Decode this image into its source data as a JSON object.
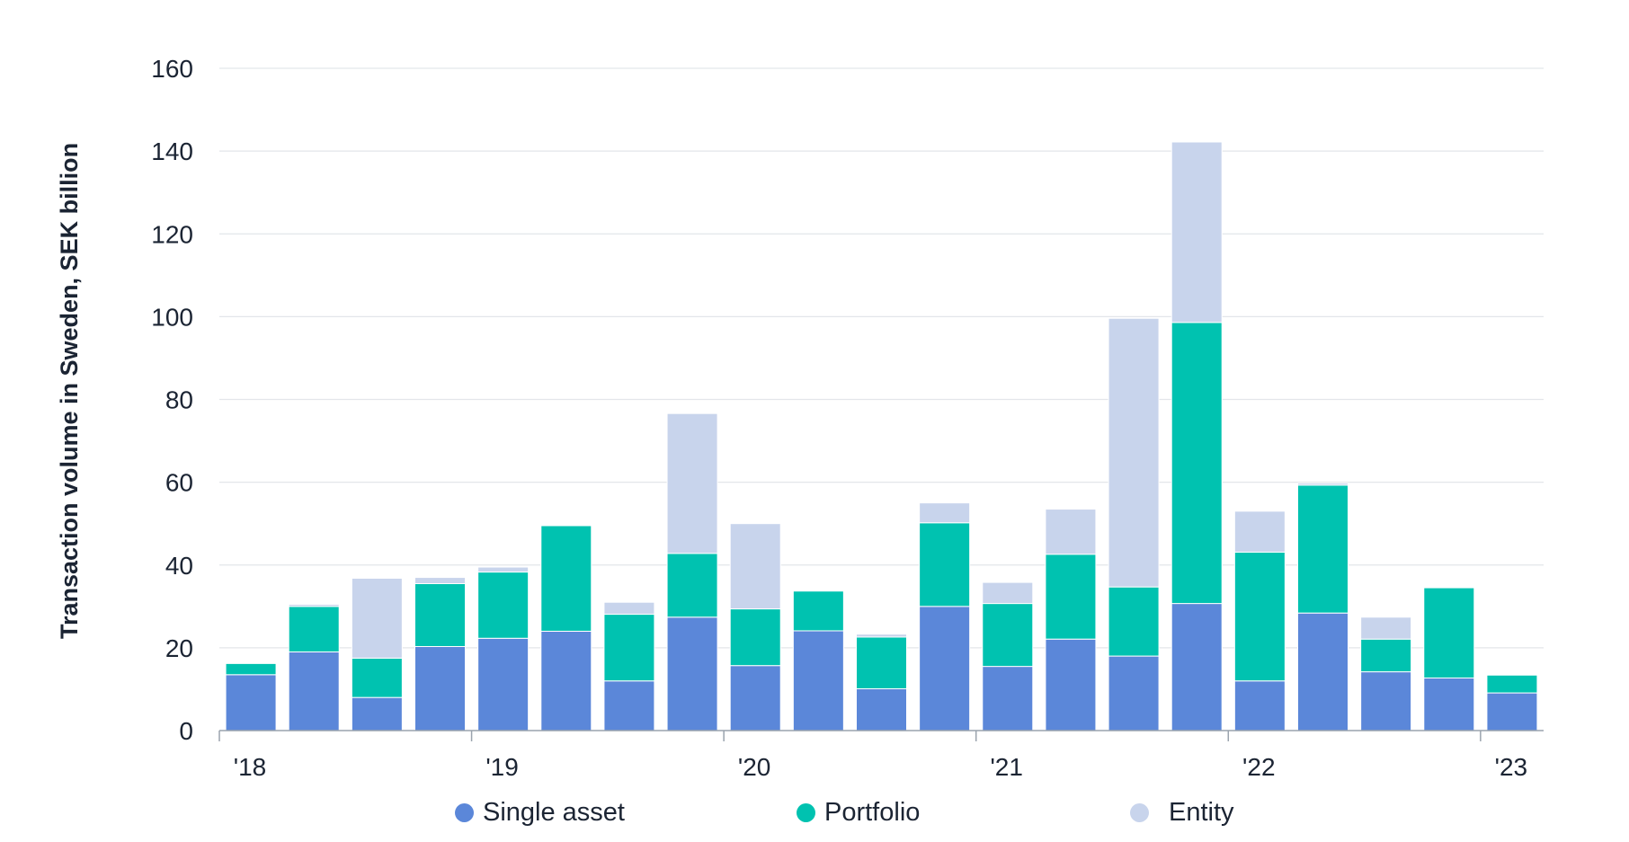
{
  "chart_data": {
    "type": "bar",
    "stacked": true,
    "title": "",
    "xlabel": "",
    "ylabel": "Transaction volume in Sweden, SEK billion",
    "ylim": [
      0,
      160
    ],
    "yticks": [
      0,
      20,
      40,
      60,
      80,
      100,
      120,
      140,
      160
    ],
    "grid": true,
    "legend_position": "bottom",
    "categories": [
      "2018 Q1",
      "2018 Q2",
      "2018 Q3",
      "2018 Q4",
      "2019 Q1",
      "2019 Q2",
      "2019 Q3",
      "2019 Q4",
      "2020 Q1",
      "2020 Q2",
      "2020 Q3",
      "2020 Q4",
      "2021 Q1",
      "2021 Q2",
      "2021 Q3",
      "2021 Q4",
      "2022 Q1",
      "2022 Q2",
      "2022 Q3",
      "2022 Q4",
      "2023 Q1"
    ],
    "xtick_labels": [
      "'18",
      "'19",
      "'20",
      "'21",
      "'22",
      "'23"
    ],
    "series": [
      {
        "name": "Single asset",
        "color": "#5b87d9",
        "values": [
          13.5,
          19,
          8,
          20.3,
          22.3,
          24,
          12,
          27.4,
          15.7,
          24.1,
          10.1,
          30,
          15.5,
          22.1,
          18,
          30.7,
          12,
          28.4,
          14.2,
          12.7,
          9.1
        ]
      },
      {
        "name": "Portfolio",
        "color": "#00c2b0",
        "values": [
          2.7,
          11,
          9.5,
          15.2,
          16,
          25.5,
          16.1,
          15.4,
          13.7,
          9.6,
          12.5,
          20.2,
          15.2,
          20.5,
          16.7,
          67.9,
          31.1,
          30.9,
          7.9,
          21.8,
          4.3
        ]
      },
      {
        "name": "Entity",
        "color": "#c8d4ec",
        "values": [
          0,
          0.5,
          19.3,
          1.5,
          1.2,
          0,
          2.9,
          33.8,
          20.6,
          0,
          0.7,
          4.8,
          5.1,
          10.9,
          64.9,
          43.6,
          9.9,
          0.5,
          5.3,
          0,
          0
        ]
      }
    ]
  }
}
